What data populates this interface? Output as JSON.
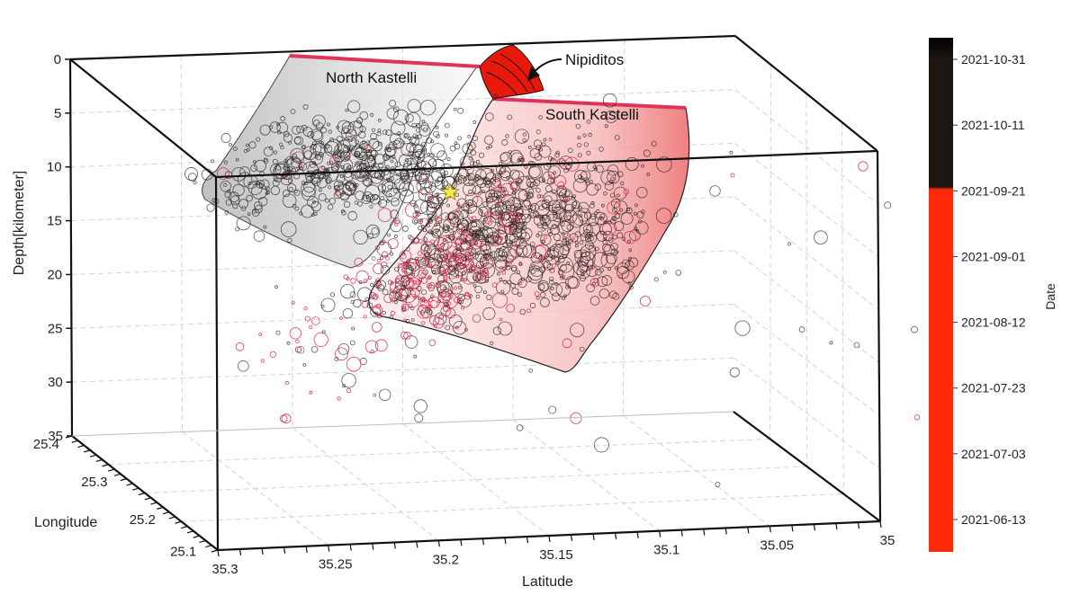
{
  "chart_data": {
    "type": "scatter",
    "projection": "3d",
    "title": "",
    "axes": {
      "depth": {
        "label": "Depth[kilometer]",
        "ticks": [
          "0",
          "5",
          "10",
          "15",
          "20",
          "25",
          "30",
          "35"
        ],
        "range": [
          0,
          35
        ],
        "inverted": true
      },
      "longitude": {
        "label": "Longitude",
        "ticks": [
          "25.4",
          "25.3",
          "25.2",
          "25.1"
        ],
        "range": [
          25.05,
          25.4
        ]
      },
      "latitude": {
        "label": "Latitude",
        "ticks": [
          "35.3",
          "35.25",
          "35.2",
          "35.15",
          "35.1",
          "35.05",
          "35"
        ],
        "range": [
          35.0,
          35.3
        ]
      }
    },
    "grid": true,
    "colorbar": {
      "label": "Date",
      "ticks": [
        "2021-10-31",
        "2021-10-11",
        "2021-09-21",
        "2021-09-01",
        "2021-08-12",
        "2021-07-23",
        "2021-07-03",
        "2021-06-13"
      ],
      "colors": {
        "early": "#ff2a0a",
        "late": "#1a1410",
        "top": "#000000"
      },
      "split_at": "2021-09-21"
    },
    "annotations": [
      {
        "text": "North Kastelli",
        "color": "#e0335a"
      },
      {
        "text": "South Kastelli",
        "color": "#e0335a"
      },
      {
        "text": "Nipiditos",
        "color": "#e8190a"
      }
    ],
    "mainshock": {
      "marker": "star",
      "color": "#f5e84a",
      "depth_km": 12
    }
  }
}
